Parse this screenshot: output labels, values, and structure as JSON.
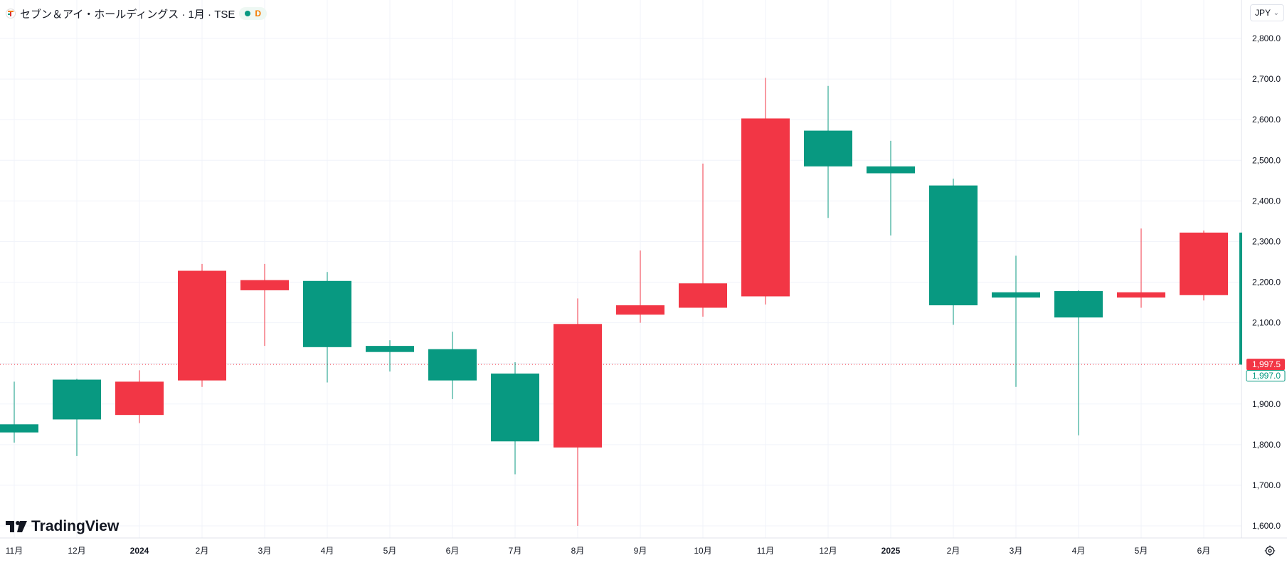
{
  "header": {
    "title": "セブン＆アイ・ホールディングス · 1月 · TSE",
    "status_label": "D"
  },
  "currency": {
    "label": "JPY",
    "caret": "⌄"
  },
  "branding": {
    "logo_text": "TradingView"
  },
  "colors": {
    "up": "#089981",
    "down": "#f23645",
    "grid": "#f0f3fa",
    "text": "#131722",
    "axis_text": "#131722"
  },
  "chart_data": {
    "type": "candlestick",
    "title": "",
    "xlabel": "",
    "ylabel": "",
    "ylim": [
      1560,
      2880
    ],
    "grid": true,
    "y_ticks": [
      1600,
      1700,
      1800,
      1900,
      2000,
      2100,
      2200,
      2300,
      2400,
      2500,
      2600,
      2700,
      2800
    ],
    "y_tick_labels": [
      "1,600.0",
      "1,700.0",
      "1,800.0",
      "1,900.0",
      "2,000.0",
      "2,100.0",
      "2,200.0",
      "2,300.0",
      "2,400.0",
      "2,500.0",
      "2,600.0",
      "2,700.0",
      "2,800.0"
    ],
    "x_labels": [
      "11月",
      "12月",
      "2024",
      "2月",
      "3月",
      "4月",
      "5月",
      "6月",
      "7月",
      "8月",
      "9月",
      "10月",
      "11月",
      "12月",
      "2025",
      "2月",
      "3月",
      "4月",
      "5月",
      "6月"
    ],
    "x_label_bold": [
      false,
      false,
      true,
      false,
      false,
      false,
      false,
      false,
      false,
      false,
      false,
      false,
      false,
      false,
      true,
      false,
      false,
      false,
      false,
      false
    ],
    "candles": [
      {
        "o": 1830,
        "h": 1955,
        "l": 1805,
        "c": 1850
      },
      {
        "o": 1862,
        "h": 1962,
        "l": 1772,
        "c": 1960
      },
      {
        "o": 1955,
        "h": 1983,
        "l": 1853,
        "c": 1873
      },
      {
        "o": 2228,
        "h": 2245,
        "l": 1942,
        "c": 1958
      },
      {
        "o": 2205,
        "h": 2245,
        "l": 2043,
        "c": 2180
      },
      {
        "o": 2040,
        "h": 2225,
        "l": 1953,
        "c": 2203
      },
      {
        "o": 2028,
        "h": 2057,
        "l": 1980,
        "c": 2043
      },
      {
        "o": 1958,
        "h": 2078,
        "l": 1912,
        "c": 2035
      },
      {
        "o": 1808,
        "h": 2003,
        "l": 1727,
        "c": 1975
      },
      {
        "o": 2097,
        "h": 2160,
        "l": 1600,
        "c": 1793
      },
      {
        "o": 2143,
        "h": 2278,
        "l": 2100,
        "c": 2120
      },
      {
        "o": 2197,
        "h": 2492,
        "l": 2115,
        "c": 2137
      },
      {
        "o": 2603,
        "h": 2703,
        "l": 2145,
        "c": 2165
      },
      {
        "o": 2485,
        "h": 2683,
        "l": 2358,
        "c": 2573
      },
      {
        "o": 2468,
        "h": 2548,
        "l": 2315,
        "c": 2485
      },
      {
        "o": 2143,
        "h": 2455,
        "l": 2095,
        "c": 2438
      },
      {
        "o": 2162,
        "h": 2265,
        "l": 1942,
        "c": 2175
      },
      {
        "o": 2113,
        "h": 2180,
        "l": 1823,
        "c": 2178
      },
      {
        "o": 2175,
        "h": 2332,
        "l": 2137,
        "c": 2162
      },
      {
        "o": 2322,
        "h": 2327,
        "l": 2155,
        "c": 2168
      }
    ],
    "current_bar_up": {
      "o": 1997,
      "c": 2322
    },
    "current_price": 1997.5,
    "current_price_label": "1,997.5",
    "second_price_label": "1,997.0"
  }
}
